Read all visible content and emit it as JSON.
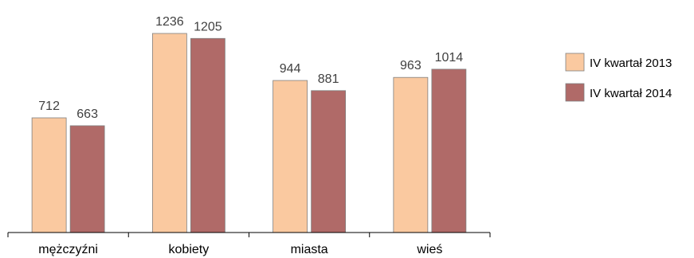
{
  "chart_data": {
    "type": "bar",
    "title": "",
    "xlabel": "",
    "ylabel": "",
    "categories": [
      "mężczyźni",
      "kobiety",
      "miasta",
      "wieś"
    ],
    "series": [
      {
        "name": "IV kwartał 2013",
        "values": [
          712,
          1236,
          944,
          963
        ],
        "color": "#FAC9A0",
        "labels": [
          "712",
          "1236",
          "944",
          "963"
        ]
      },
      {
        "name": "IV kwartał 2014",
        "values": [
          663,
          1205,
          881,
          1014
        ],
        "color": "#B06A68",
        "labels": [
          "663",
          "1205",
          "881",
          "1014"
        ]
      }
    ],
    "ylim": [
      0,
      1400
    ],
    "grid": false,
    "legend_position": "right",
    "data_labels": true
  }
}
